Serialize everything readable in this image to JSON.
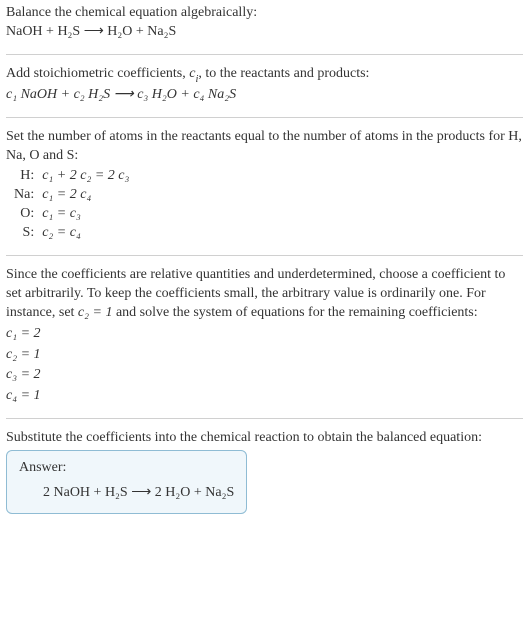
{
  "section1": {
    "prompt": "Balance the chemical equation algebraically:",
    "equation": "NaOH + H₂S  ⟶  H₂O + Na₂S"
  },
  "section2": {
    "text_a": "Add stoichiometric coefficients, ",
    "ci": "c",
    "ci_sub": "i",
    "text_b": ", to the reactants and products:",
    "equation": "c₁ NaOH + c₂ H₂S  ⟶  c₃ H₂O + c₄ Na₂S"
  },
  "section3": {
    "intro": "Set the number of atoms in the reactants equal to the number of atoms in the products for H, Na, O and S:",
    "rows": [
      {
        "atom": "H:",
        "eq": "c₁ + 2 c₂ = 2 c₃"
      },
      {
        "atom": "Na:",
        "eq": "c₁ = 2 c₄"
      },
      {
        "atom": "O:",
        "eq": "c₁ = c₃"
      },
      {
        "atom": "S:",
        "eq": "c₂ = c₄"
      }
    ]
  },
  "section4": {
    "text_a": "Since the coefficients are relative quantities and underdetermined, choose a coefficient to set arbitrarily. To keep the coefficients small, the arbitrary value is ordinarily one. For instance, set ",
    "c2": "c₂ = 1",
    "text_b": " and solve the system of equations for the remaining coefficients:",
    "solutions": [
      "c₁ = 2",
      "c₂ = 1",
      "c₃ = 2",
      "c₄ = 1"
    ]
  },
  "section5": {
    "intro": "Substitute the coefficients into the chemical reaction to obtain the balanced equation:",
    "answer_label": "Answer:",
    "answer_eq": "2 NaOH + H₂S  ⟶  2 H₂O + Na₂S"
  },
  "colors": {
    "text": "#333333",
    "hr": "#d0d0d0",
    "box_border": "#8fbcd4",
    "box_bg": "#f0f7fb"
  }
}
